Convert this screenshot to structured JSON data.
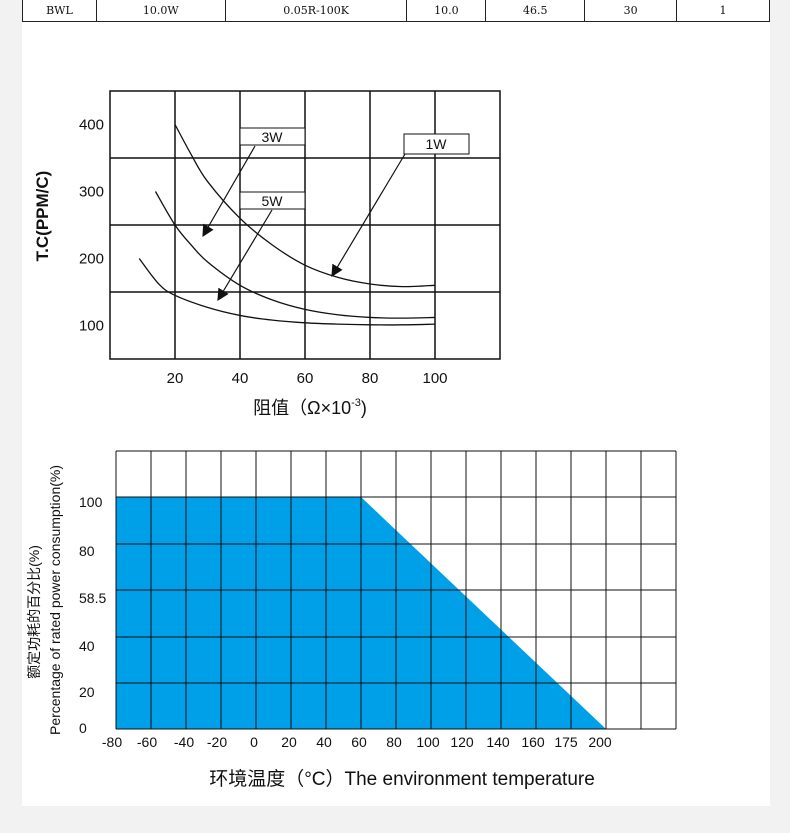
{
  "spec_row": [
    "BWL",
    "10.0W",
    "0.05R-100K",
    "10.0",
    "46.5",
    "30",
    "1"
  ],
  "chart_data": [
    {
      "type": "line",
      "ylabel": "T.C(PPM/C)",
      "xlabel_main": "阻值（Ω×10",
      "xlabel_sup": "-3",
      "xlabel_end": ")",
      "x_ticks": [
        20,
        40,
        60,
        80,
        100
      ],
      "y_ticks": [
        100,
        200,
        300,
        400
      ],
      "xlim": [
        0,
        120
      ],
      "grid": true,
      "annotations": [
        "3W",
        "5W",
        "1W"
      ],
      "series": [
        {
          "name": "1W",
          "x": [
            20,
            25,
            30,
            40,
            50,
            60,
            70,
            80,
            90,
            100
          ],
          "y": [
            400,
            355,
            315,
            260,
            220,
            190,
            172,
            162,
            158,
            160
          ]
        },
        {
          "name": "3W",
          "x": [
            14,
            20,
            25,
            30,
            40,
            50,
            60,
            70,
            80,
            90,
            100
          ],
          "y": [
            300,
            250,
            220,
            195,
            160,
            138,
            124,
            116,
            112,
            111,
            112
          ]
        },
        {
          "name": "5W",
          "x": [
            9,
            15,
            20,
            30,
            40,
            50,
            60,
            70,
            80,
            90,
            100
          ],
          "y": [
            200,
            162,
            145,
            127,
            115,
            108,
            104,
            102,
            101,
            101,
            102
          ]
        }
      ]
    },
    {
      "type": "area",
      "ylabel_line1": "额定功耗的百分比(%)",
      "ylabel_line2": "Percentage of rated power consumption(%)",
      "xlabel": "环境温度（°C）The environment temperature",
      "x_ticks": [
        "-80",
        "-60",
        "-40",
        "-20",
        "0",
        "20",
        "40",
        "60",
        "80",
        "100",
        "120",
        "140",
        "160",
        "175",
        "200"
      ],
      "y_ticks": [
        "100",
        "80",
        "58.5",
        "40",
        "20",
        "0"
      ],
      "x": [
        -80,
        60,
        200
      ],
      "y": [
        100,
        100,
        0
      ],
      "grid": true,
      "fill_color": "#00a0e9"
    }
  ]
}
